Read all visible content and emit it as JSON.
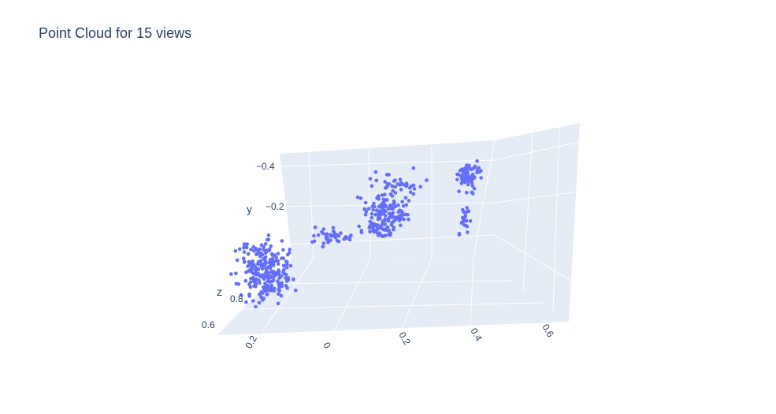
{
  "chart_data": {
    "type": "scatter",
    "title": "Point Cloud for 15 views",
    "marker_color": "#636efa",
    "pane_color": "#e5ecf6",
    "grid": true,
    "axes": {
      "x": {
        "label": "",
        "ticks": [
          "0.2",
          "0",
          "0.2",
          "0.4",
          "0.6"
        ]
      },
      "y": {
        "label": "y",
        "ticks": [
          "−0.4",
          "−0.2"
        ]
      },
      "z": {
        "label": "z",
        "ticks": [
          "0.8",
          "0.6"
        ]
      }
    },
    "point_count": 560
  }
}
